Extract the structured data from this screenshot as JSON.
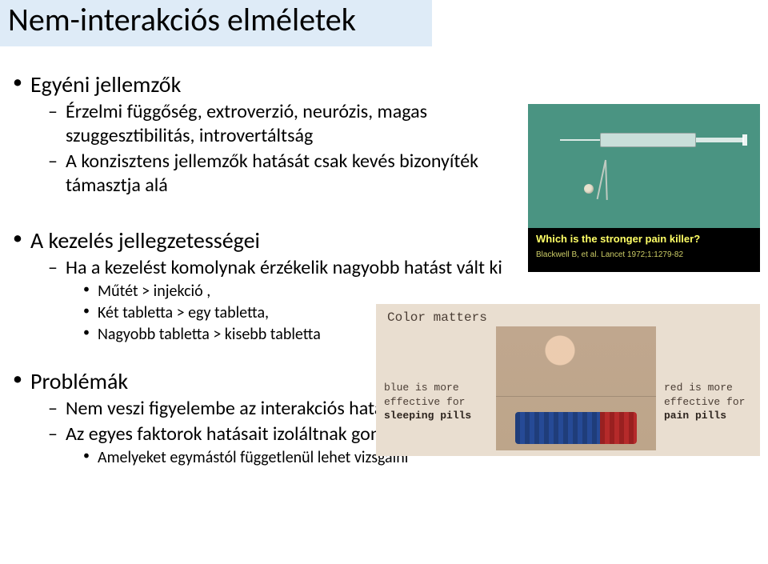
{
  "title": "Nem-interakciós elméletek",
  "sections": [
    {
      "lvl": 0,
      "text": "Egyéni jellemzők"
    },
    {
      "lvl": 1,
      "text": "Érzelmi függőség, extroverzió, neurózis, magas szuggesztibilitás, introvertáltság"
    },
    {
      "lvl": 1,
      "text": "A konzisztens jellemzők hatását csak kevés bizonyíték támasztja alá"
    },
    {
      "lvl": -1,
      "text": ""
    },
    {
      "lvl": 0,
      "text": "A kezelés jellegzetességei"
    },
    {
      "lvl": 1,
      "text": "Ha a kezelést komolynak érzékelik nagyobb hatást vált ki"
    },
    {
      "lvl": 2,
      "text": "Műtét > injekció ,"
    },
    {
      "lvl": 2,
      "text": "Két tabletta > egy tabletta,"
    },
    {
      "lvl": 2,
      "text": "Nagyobb tabletta > kisebb tabletta"
    },
    {
      "lvl": -2,
      "text": ""
    },
    {
      "lvl": 0,
      "text": "Problémák"
    },
    {
      "lvl": 1,
      "text": "Nem veszi figyelembe az interakciós hatásokat"
    },
    {
      "lvl": 1,
      "text": "Az egyes faktorok hatásait izoláltnak gondolják"
    },
    {
      "lvl": 2,
      "text": "Amelyeket egymástól függetlenül lehet vizsgálni"
    }
  ],
  "img1": {
    "question": "Which is the stronger pain killer?",
    "citation": "Blackwell B, et al. Lancet 1972;1:1279-82",
    "bg_color": "#4a9482"
  },
  "img2": {
    "title": "Color matters",
    "left_line1": "blue is more",
    "left_line2": "effective for",
    "left_bold": "sleeping pills",
    "right_line1": "red is more",
    "right_line2": "effective for",
    "right_bold": "pain pills",
    "bg_color": "#e9ded0"
  },
  "colors": {
    "title_band": "#deebf7",
    "text": "#000000",
    "page_bg": "#ffffff"
  }
}
